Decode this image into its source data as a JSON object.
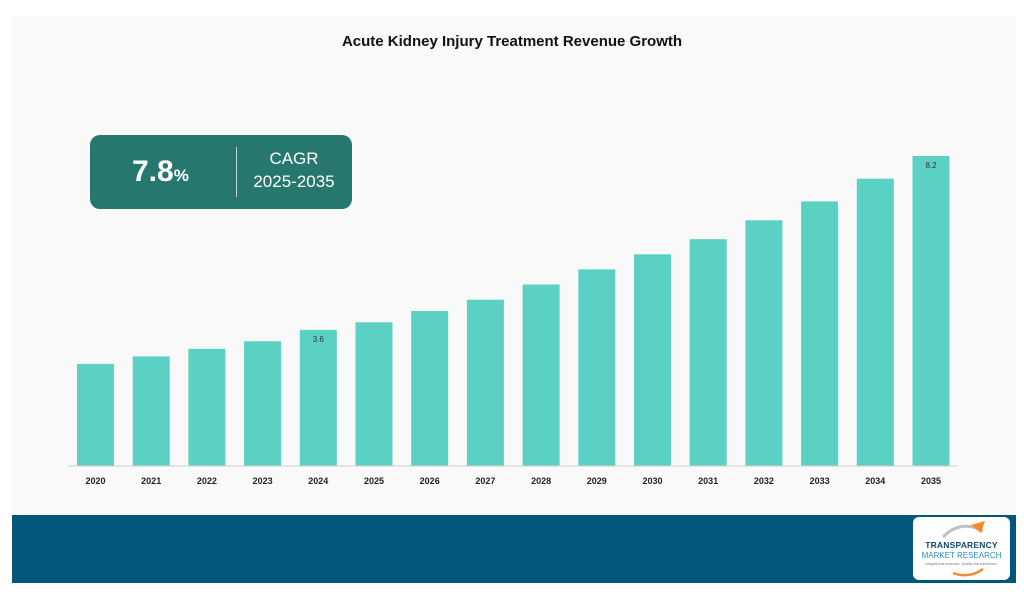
{
  "chart_data": {
    "type": "bar",
    "title": "Acute Kidney Injury Treatment Revenue Growth",
    "categories": [
      "2020",
      "2021",
      "2022",
      "2023",
      "2024",
      "2025",
      "2026",
      "2027",
      "2028",
      "2029",
      "2030",
      "2031",
      "2032",
      "2033",
      "2034",
      "2035"
    ],
    "values": [
      2.7,
      2.9,
      3.1,
      3.3,
      3.6,
      3.8,
      4.1,
      4.4,
      4.8,
      5.2,
      5.6,
      6.0,
      6.5,
      7.0,
      7.6,
      8.2
    ],
    "data_labels": {
      "2024": "3.6",
      "2035": "8.2"
    },
    "ylim": [
      0,
      8.2
    ],
    "grid": false,
    "bar_color": "#5bd1c4"
  },
  "cagr": {
    "value": "7.8",
    "unit": "%",
    "label": "CAGR",
    "period": "2025-2035",
    "box_color": "#26786f"
  },
  "footer": {
    "color": "#02577a"
  },
  "logo": {
    "line1": "TRANSPARENCY",
    "line2": "MARKET RESEARCH",
    "tagline": "Insights that empower. Quality that transforms."
  }
}
